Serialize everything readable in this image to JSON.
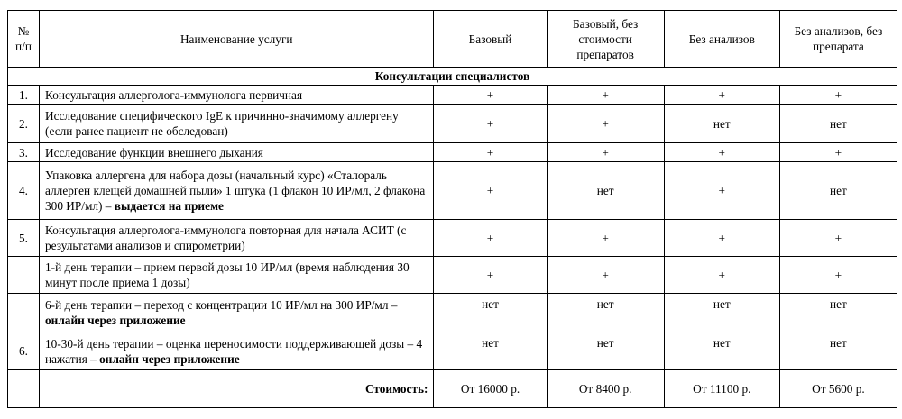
{
  "headers": {
    "num": "№ п/п",
    "name": "Наименование услуги",
    "col1": "Базовый",
    "col2": "Базовый, без стоимости препаратов",
    "col3": "Без анализов",
    "col4": "Без анализов, без препарата"
  },
  "section": "Консультации специалистов",
  "rows": [
    {
      "num": "1.",
      "name": "Консультация аллерголога-иммунолога первичная",
      "bold": "",
      "v": [
        "+",
        "+",
        "+",
        "+"
      ]
    },
    {
      "num": "2.",
      "name": "Исследование специфического IgE к причинно-значимому аллергену (если ранее пациент не обследован)",
      "bold": "",
      "v": [
        "+",
        "+",
        "нет",
        "нет"
      ]
    },
    {
      "num": "3.",
      "name": "Исследование функции внешнего дыхания",
      "bold": "",
      "v": [
        "+",
        "+",
        "+",
        "+"
      ]
    },
    {
      "num": "4.",
      "name": "Упаковка аллергена для набора дозы (начальный курс) «Сталораль аллерген клещей домашней пыли» 1 штука (1 флакон 10 ИР/мл, 2 флакона 300 ИР/мл) – ",
      "bold": "выдается на приеме",
      "v": [
        "+",
        "нет",
        "+",
        "нет"
      ]
    },
    {
      "num": "5.",
      "name": "Консультация аллерголога-иммунолога повторная для начала АСИТ (с результатами анализов и спирометрии)",
      "bold": "",
      "v": [
        "+",
        "+",
        "+",
        "+"
      ]
    },
    {
      "num": "",
      "name": "1-й день терапии – прием первой дозы 10 ИР/мл (время наблюдения 30 минут после приема 1 дозы)",
      "bold": "",
      "v": [
        "+",
        "+",
        "+",
        "+"
      ]
    },
    {
      "num": "",
      "name": "6-й день терапии – переход с концентрации 10 ИР/мл на 300 ИР/мл – ",
      "bold": "онлайн через приложение",
      "v": [
        "нет",
        "нет",
        "нет",
        "нет"
      ]
    },
    {
      "num": "6.",
      "name": "10-30-й день терапии – оценка переносимости поддерживающей дозы – 4 нажатия – ",
      "bold": "онлайн через приложение",
      "v": [
        "нет",
        "нет",
        "нет",
        "нет"
      ]
    }
  ],
  "cost": {
    "label": "Стоимость:",
    "values": [
      "От 16000 р.",
      "От 8400 р.",
      "От 11100 р.",
      "От 5600 р."
    ]
  }
}
